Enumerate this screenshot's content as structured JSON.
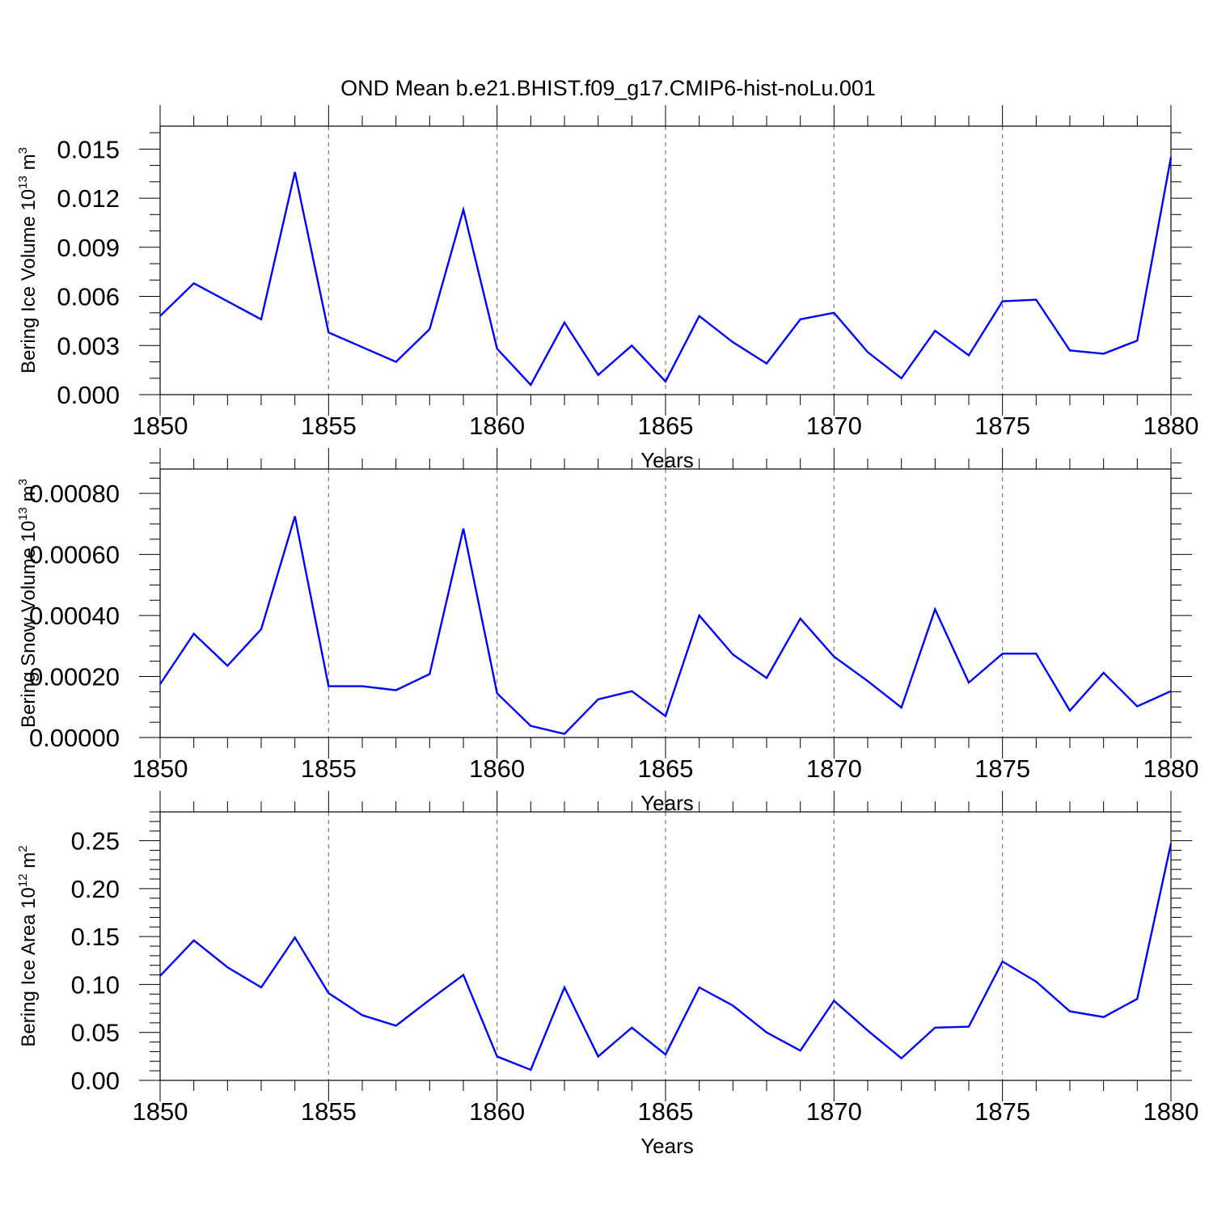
{
  "figure": {
    "title": "OND Mean b.e21.BHIST.f09_g17.CMIP6-hist-noLu.001"
  },
  "colors": {
    "line": "#0000ff",
    "grid": "#777777",
    "axes": "#000000"
  },
  "chart_data": [
    {
      "type": "line",
      "name": "ice-volume",
      "ylabel": {
        "text": "Bering Ice Volume 10",
        "exp": "13",
        "unit": " m",
        "unit_exp": "3"
      },
      "xlabel": "Years",
      "xlim": [
        1850,
        1880
      ],
      "ylim": [
        0.0,
        0.0164
      ],
      "x_ticks": [
        1850,
        1855,
        1860,
        1865,
        1870,
        1875,
        1880
      ],
      "x_tick_labels": [
        "1850",
        "1855",
        "1860",
        "1865",
        "1870",
        "1875",
        "1880"
      ],
      "y_ticks": [
        0.0,
        0.003,
        0.006,
        0.009,
        0.012,
        0.015
      ],
      "y_tick_labels": [
        "0.000",
        "0.003",
        "0.006",
        "0.009",
        "0.012",
        "0.015"
      ],
      "y_minor_step": 0.001,
      "x": [
        1850,
        1851,
        1852,
        1853,
        1854,
        1855,
        1856,
        1857,
        1858,
        1859,
        1860,
        1861,
        1862,
        1863,
        1864,
        1865,
        1866,
        1867,
        1868,
        1869,
        1870,
        1871,
        1872,
        1873,
        1874,
        1875,
        1876,
        1877,
        1878,
        1879,
        1880
      ],
      "values": [
        0.0048,
        0.0068,
        0.0057,
        0.0046,
        0.0136,
        0.0038,
        0.0029,
        0.002,
        0.004,
        0.0113,
        0.0028,
        0.0006,
        0.0044,
        0.0012,
        0.003,
        0.0008,
        0.0048,
        0.0032,
        0.0019,
        0.0046,
        0.005,
        0.0026,
        0.001,
        0.0039,
        0.0024,
        0.0057,
        0.0058,
        0.0027,
        0.0025,
        0.0033,
        0.0145
      ]
    },
    {
      "type": "line",
      "name": "snow-volume",
      "ylabel": {
        "text": "Bering Snow Volume 10",
        "exp": "13",
        "unit": " m",
        "unit_exp": "3"
      },
      "xlabel": "Years",
      "xlim": [
        1850,
        1880
      ],
      "ylim": [
        0.0,
        0.00088
      ],
      "x_ticks": [
        1850,
        1855,
        1860,
        1865,
        1870,
        1875,
        1880
      ],
      "x_tick_labels": [
        "1850",
        "1855",
        "1860",
        "1865",
        "1870",
        "1875",
        "1880"
      ],
      "y_ticks": [
        0.0,
        0.0002,
        0.0004,
        0.0006,
        0.0008
      ],
      "y_tick_labels": [
        "0.00000",
        "0.00020",
        "0.00040",
        "0.00060",
        "0.00080"
      ],
      "y_minor_step": 5e-05,
      "x": [
        1850,
        1851,
        1852,
        1853,
        1854,
        1855,
        1856,
        1857,
        1858,
        1859,
        1860,
        1861,
        1862,
        1863,
        1864,
        1865,
        1866,
        1867,
        1868,
        1869,
        1870,
        1871,
        1872,
        1873,
        1874,
        1875,
        1876,
        1877,
        1878,
        1879,
        1880
      ],
      "values": [
        0.000175,
        0.00034,
        0.000235,
        0.000355,
        0.000725,
        0.000168,
        0.000168,
        0.000155,
        0.000208,
        0.000685,
        0.000145,
        3.8e-05,
        1.2e-05,
        0.000125,
        0.000152,
        7e-05,
        0.0004,
        0.000272,
        0.000195,
        0.00039,
        0.000265,
        0.000185,
        9.8e-05,
        0.00042,
        0.00018,
        0.000275,
        0.000275,
        8.8e-05,
        0.000212,
        0.000102,
        0.000152
      ]
    },
    {
      "type": "line",
      "name": "ice-area",
      "ylabel": {
        "text": "Bering Ice Area 10",
        "exp": "12",
        "unit": " m",
        "unit_exp": "2"
      },
      "xlabel": "Years",
      "xlim": [
        1850,
        1880
      ],
      "ylim": [
        0.0,
        0.28
      ],
      "x_ticks": [
        1850,
        1855,
        1860,
        1865,
        1870,
        1875,
        1880
      ],
      "x_tick_labels": [
        "1850",
        "1855",
        "1860",
        "1865",
        "1870",
        "1875",
        "1880"
      ],
      "y_ticks": [
        0.0,
        0.05,
        0.1,
        0.15,
        0.2,
        0.25
      ],
      "y_tick_labels": [
        "0.00",
        "0.05",
        "0.10",
        "0.15",
        "0.20",
        "0.25"
      ],
      "y_minor_step": 0.01,
      "x": [
        1850,
        1851,
        1852,
        1853,
        1854,
        1855,
        1856,
        1857,
        1858,
        1859,
        1860,
        1861,
        1862,
        1863,
        1864,
        1865,
        1866,
        1867,
        1868,
        1869,
        1870,
        1871,
        1872,
        1873,
        1874,
        1875,
        1876,
        1877,
        1878,
        1879,
        1880
      ],
      "values": [
        0.109,
        0.146,
        0.118,
        0.097,
        0.149,
        0.091,
        0.068,
        0.057,
        0.084,
        0.11,
        0.025,
        0.011,
        0.097,
        0.025,
        0.055,
        0.027,
        0.097,
        0.078,
        0.05,
        0.031,
        0.083,
        0.052,
        0.023,
        0.055,
        0.056,
        0.124,
        0.103,
        0.072,
        0.066,
        0.085,
        0.247
      ]
    }
  ]
}
